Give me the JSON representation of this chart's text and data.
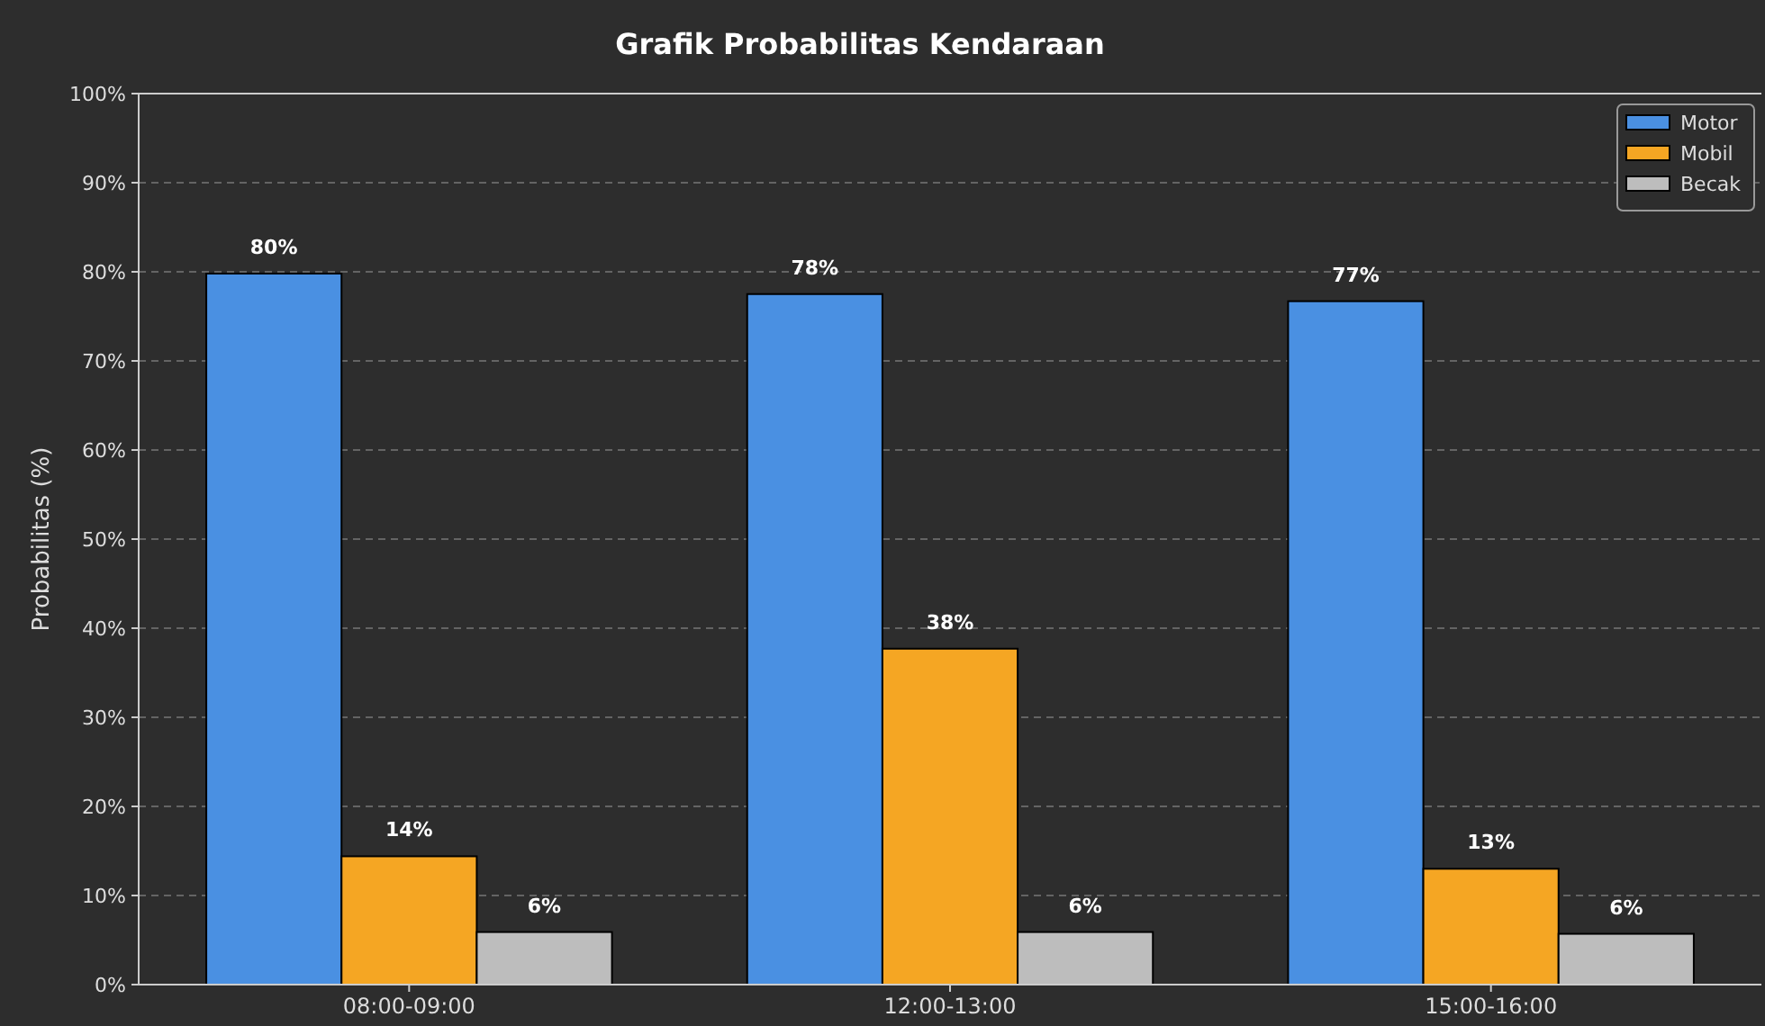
{
  "chart_data": {
    "type": "bar",
    "title": "Grafik Probabilitas Kendaraan",
    "ylabel": "Probabilitas (%)",
    "categories": [
      "08:00-09:00",
      "12:00-13:00",
      "15:00-16:00"
    ],
    "series": [
      {
        "name": "Motor",
        "color": "#4a90e2",
        "values": [
          79.8,
          77.5,
          76.7
        ],
        "value_labels": [
          "80%",
          "78%",
          "77%"
        ]
      },
      {
        "name": "Mobil",
        "color": "#f5a623",
        "values": [
          14.4,
          37.7,
          13.0
        ],
        "value_labels": [
          "14%",
          "38%",
          "13%"
        ]
      },
      {
        "name": "Becak",
        "color": "#bdbdbd",
        "values": [
          5.9,
          5.9,
          5.7
        ],
        "value_labels": [
          "6%",
          "6%",
          "6%"
        ]
      }
    ],
    "ylim": [
      0,
      100
    ],
    "yticks": [
      {
        "value": 0,
        "label": "0%"
      },
      {
        "value": 10,
        "label": "10%"
      },
      {
        "value": 20,
        "label": "20%"
      },
      {
        "value": 30,
        "label": "30%"
      },
      {
        "value": 40,
        "label": "40%"
      },
      {
        "value": 50,
        "label": "50%"
      },
      {
        "value": 60,
        "label": "60%"
      },
      {
        "value": 70,
        "label": "70%"
      },
      {
        "value": 80,
        "label": "80%"
      },
      {
        "value": 90,
        "label": "90%"
      },
      {
        "value": 100,
        "label": "100%"
      }
    ],
    "grid": "y",
    "legend": "top right"
  }
}
